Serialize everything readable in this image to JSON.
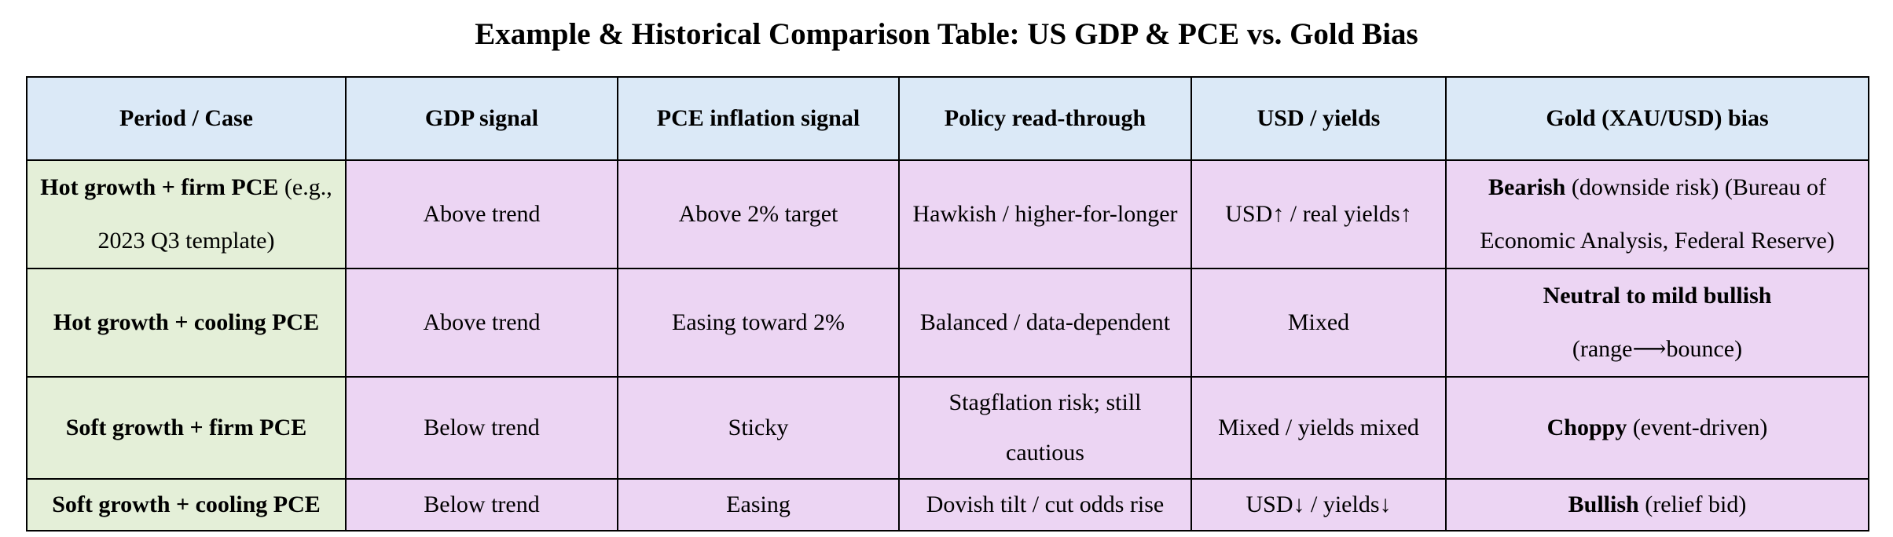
{
  "title": "Example & Historical Comparison Table: US GDP & PCE vs. Gold Bias",
  "columns": [
    "Period / Case",
    "GDP signal",
    "PCE inflation signal",
    "Policy read-through",
    "USD / yields",
    "Gold (XAU/USD) bias"
  ],
  "rows": [
    {
      "case_bold": "Hot growth + firm PCE",
      "case_note": " (e.g., 2023 Q3 template)",
      "gdp": "Above trend",
      "pce": "Above 2% target",
      "policy": "Hawkish / higher-for-longer",
      "usd": "USD↑ / real yields↑",
      "gold_bold": "Bearish",
      "gold_note": " (downside risk) (Bureau of Economic Analysis, Federal Reserve)"
    },
    {
      "case_bold": "Hot growth + cooling PCE",
      "case_note": "",
      "gdp": "Above trend",
      "pce": "Easing toward 2%",
      "policy": "Balanced / data-dependent",
      "usd": "Mixed",
      "gold_bold": "Neutral to mild bullish",
      "gold_note": " (range⟶bounce)"
    },
    {
      "case_bold": "Soft growth + firm PCE",
      "case_note": "",
      "gdp": "Below trend",
      "pce": "Sticky",
      "policy": "Stagflation risk; still cautious",
      "usd": "Mixed / yields mixed",
      "gold_bold": "Choppy",
      "gold_note": " (event-driven)"
    },
    {
      "case_bold": "Soft growth + cooling PCE",
      "case_note": "",
      "gdp": "Below trend",
      "pce": "Easing",
      "policy": "Dovish tilt / cut odds rise",
      "usd": "USD↓ / yields↓",
      "gold_bold": "Bullish",
      "gold_note": " (relief bid)"
    }
  ],
  "colors": {
    "header_bg": "#dbe9f7",
    "case_bg": "#e4efd8",
    "data_bg": "#ecd5f3",
    "border": "#000000"
  }
}
